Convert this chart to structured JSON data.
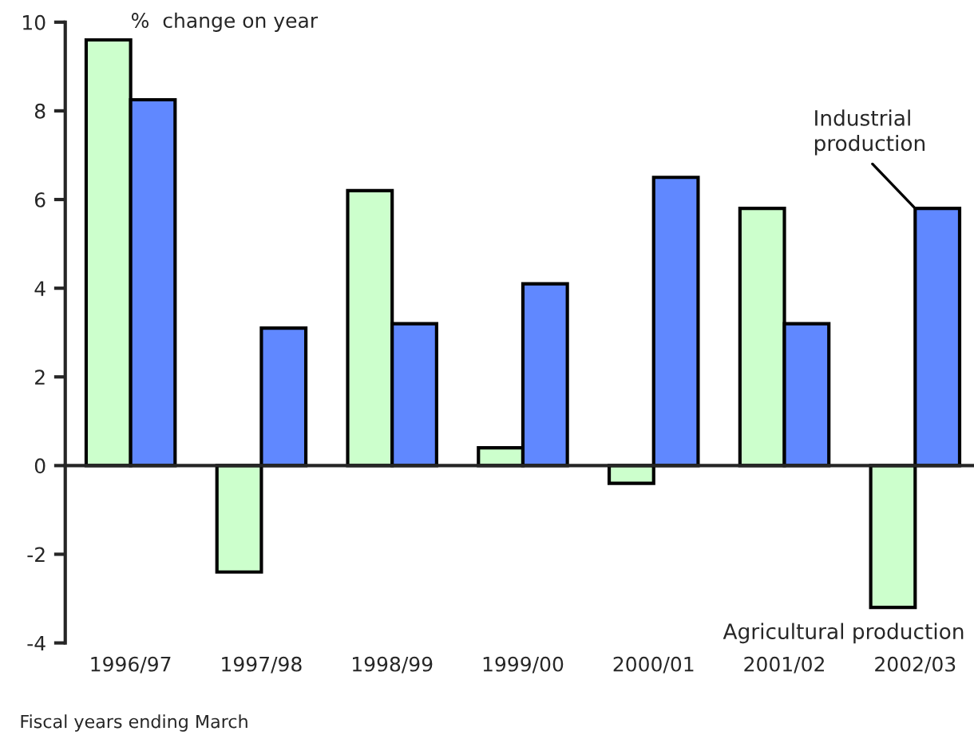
{
  "chart_data": {
    "type": "bar",
    "ylabel": "%  change on year",
    "categories": [
      "1996/97",
      "1997/98",
      "1998/99",
      "1999/00",
      "2000/01",
      "2001/02",
      "2002/03"
    ],
    "series": [
      {
        "name": "Agricultural production",
        "color": "#ccffcc",
        "values": [
          9.6,
          -2.4,
          6.2,
          0.4,
          -0.4,
          5.8,
          -3.2
        ]
      },
      {
        "name": "Industrial\nproduction",
        "color": "#6088ff",
        "values": [
          8.25,
          3.1,
          3.2,
          4.1,
          6.5,
          3.2,
          5.8
        ]
      }
    ],
    "ylim": [
      -4,
      10
    ],
    "yticks": [
      -4,
      -2,
      0,
      2,
      4,
      6,
      8,
      10
    ],
    "annotations": [
      "Fiscal years ending March"
    ],
    "legend": false
  }
}
